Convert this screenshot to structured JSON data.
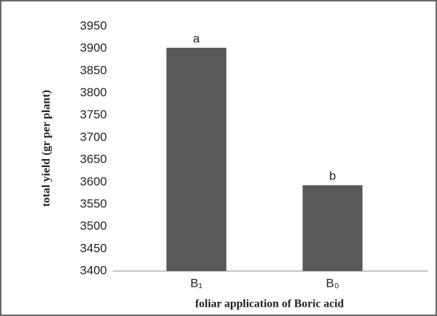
{
  "chart_data": {
    "type": "bar",
    "xlabel": "foliar application of Boric acid",
    "ylabel": "total yield (gr per plant)",
    "categories": [
      "B₁",
      "B₀"
    ],
    "values": [
      3902,
      3593
    ],
    "annotations": [
      "a",
      "b"
    ],
    "color": "#595959",
    "ylim": [
      3400,
      3950
    ],
    "yticks": [
      3400,
      3450,
      3500,
      3550,
      3600,
      3650,
      3700,
      3750,
      3800,
      3850,
      3900,
      3950
    ],
    "grid": false
  }
}
